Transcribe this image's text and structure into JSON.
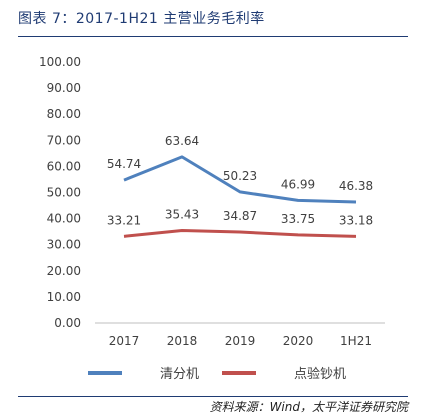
{
  "title": "图表 7：2017-1H21 主营业务毛利率",
  "source": "资料来源：Wind，太平洋证券研究院",
  "colors": {
    "series1": "#4f81bd",
    "series2": "#c0504d",
    "axis": "#bfbfbf",
    "text": "#404040",
    "title": "#1f3b73"
  },
  "chart_data": {
    "type": "line",
    "categories": [
      "2017",
      "2018",
      "2019",
      "2020",
      "1H21"
    ],
    "series": [
      {
        "name": "清分机",
        "values": [
          54.74,
          63.64,
          50.23,
          46.99,
          46.38
        ],
        "labels": [
          "54.74",
          "63.64",
          "50.23",
          "46.99",
          "46.38"
        ]
      },
      {
        "name": "点验钞机",
        "values": [
          33.21,
          35.43,
          34.87,
          33.75,
          33.18
        ],
        "labels": [
          "33.21",
          "35.43",
          "34.87",
          "33.75",
          "33.18"
        ]
      }
    ],
    "y_ticks": [
      "0.00",
      "10.00",
      "20.00",
      "30.00",
      "40.00",
      "50.00",
      "60.00",
      "70.00",
      "80.00",
      "90.00",
      "100.00"
    ],
    "ylim": [
      0,
      100
    ],
    "grid": false,
    "legend": "bottom"
  }
}
